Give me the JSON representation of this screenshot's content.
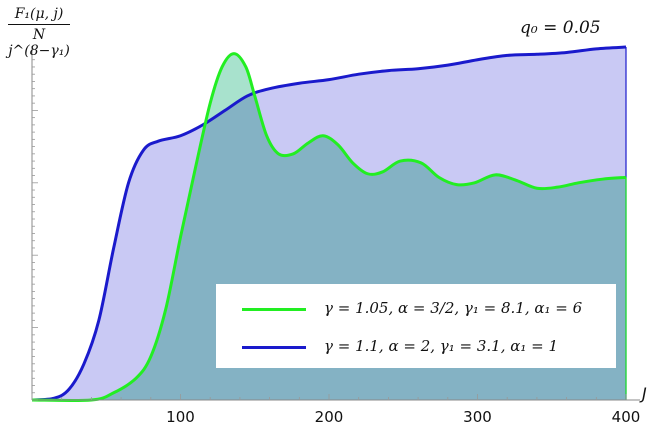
{
  "chart_data": {
    "type": "area",
    "ylabel_numerator": "F₁(μ, j)",
    "ylabel_denominator": "N j^(8−γ₁)",
    "xlabel": "J",
    "annotation": "q₀ = 0.05",
    "xlim": [
      0,
      400
    ],
    "ylim": [
      0,
      1.0
    ],
    "x_ticks": [
      100,
      200,
      300,
      400
    ],
    "y_tick_labels_shown": false,
    "legend_placement": "bottom-right",
    "series": [
      {
        "name": "γ = 1.05,  α = 3/2,  γ₁ = 8.1,  α₁ = 6",
        "color": "#22ee22",
        "fill": "#99ddc4",
        "x": [
          0,
          40,
          55,
          70,
          80,
          90,
          100,
          110,
          120,
          128,
          136,
          144,
          150,
          158,
          166,
          176,
          186,
          196,
          206,
          216,
          226,
          236,
          248,
          262,
          274,
          286,
          298,
          312,
          326,
          340,
          354,
          368,
          384,
          400
        ],
        "y": [
          0.0,
          0.0,
          0.02,
          0.06,
          0.12,
          0.25,
          0.45,
          0.64,
          0.82,
          0.92,
          0.957,
          0.92,
          0.84,
          0.73,
          0.68,
          0.68,
          0.71,
          0.73,
          0.705,
          0.655,
          0.625,
          0.63,
          0.66,
          0.655,
          0.615,
          0.595,
          0.6,
          0.622,
          0.607,
          0.585,
          0.588,
          0.6,
          0.61,
          0.615
        ]
      },
      {
        "name": "γ = 1.1,  α = 2,  γ₁ = 3.1,  α₁ = 1",
        "color": "#1a1acc",
        "fill": "#c9c9f4",
        "x": [
          0,
          15,
          25,
          35,
          45,
          55,
          65,
          75,
          85,
          100,
          115,
          130,
          145,
          160,
          180,
          200,
          220,
          240,
          260,
          280,
          300,
          320,
          340,
          360,
          380,
          400
        ],
        "y": [
          0.0,
          0.005,
          0.03,
          0.1,
          0.22,
          0.42,
          0.6,
          0.69,
          0.715,
          0.73,
          0.76,
          0.8,
          0.84,
          0.86,
          0.875,
          0.885,
          0.9,
          0.91,
          0.915,
          0.925,
          0.94,
          0.952,
          0.955,
          0.96,
          0.97,
          0.975
        ]
      }
    ]
  }
}
